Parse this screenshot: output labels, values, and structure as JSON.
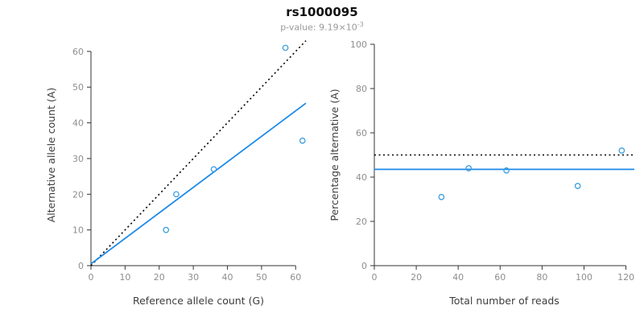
{
  "header": {
    "title": "rs1000095",
    "subtitle_base": "p-value: 9.19×10",
    "subtitle_exponent": "-3"
  },
  "chart_data": [
    {
      "type": "scatter",
      "name": "allele-counts",
      "xlabel": "Reference allele count (G)",
      "ylabel": "Alternative allele count (A)",
      "xlim": [
        0,
        63
      ],
      "ylim": [
        0,
        62
      ],
      "xticks": [
        0,
        10,
        20,
        30,
        40,
        50,
        60
      ],
      "yticks": [
        0,
        10,
        20,
        30,
        40,
        50,
        60
      ],
      "grid": false,
      "point_color": "#3E9EDE",
      "points": [
        [
          22,
          10
        ],
        [
          25,
          20
        ],
        [
          36,
          27
        ],
        [
          57,
          61
        ],
        [
          62,
          35
        ]
      ],
      "lines": [
        {
          "name": "identity-line",
          "x1": 0,
          "y1": 0,
          "x2": 63,
          "y2": 63,
          "color": "#000000",
          "dash": "2,3.5",
          "width": 1.6
        },
        {
          "name": "fit-line",
          "x1": 0,
          "y1": 0.5,
          "x2": 63,
          "y2": 45.5,
          "color": "#1E8AE8",
          "dash": "",
          "width": 1.8
        }
      ]
    },
    {
      "type": "scatter",
      "name": "percentage-vs-reads",
      "xlabel": "Total number of reads",
      "ylabel": "Percentage alternative (A)",
      "xlim": [
        0,
        124
      ],
      "ylim": [
        0,
        100
      ],
      "xticks": [
        0,
        20,
        40,
        60,
        80,
        100,
        120
      ],
      "yticks": [
        0,
        20,
        40,
        60,
        80,
        100
      ],
      "grid": false,
      "point_color": "#3E9EDE",
      "points": [
        [
          32,
          31
        ],
        [
          45,
          44
        ],
        [
          63,
          43
        ],
        [
          97,
          36
        ],
        [
          118,
          52
        ]
      ],
      "lines": [
        {
          "name": "expected-percentage-line",
          "x1": 0,
          "y1": 50,
          "x2": 124,
          "y2": 50,
          "color": "#000000",
          "dash": "2,3.5",
          "width": 1.6
        },
        {
          "name": "mean-percentage-line",
          "x1": 0,
          "y1": 43.5,
          "x2": 124,
          "y2": 43.5,
          "color": "#1E8AE8",
          "dash": "",
          "width": 1.8
        }
      ]
    }
  ]
}
